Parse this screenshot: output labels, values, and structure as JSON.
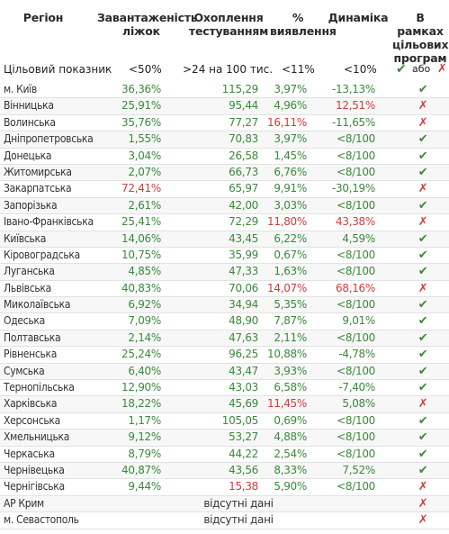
{
  "header": {
    "region": "Регіон",
    "beds": "Завантаженість\nліжок",
    "testing": "Охоплення\nтестуванням",
    "detection": "%\nвиявлення",
    "dynamics": "Динаміка",
    "programs": "В рамках\nцільових\nпрограм"
  },
  "target": {
    "label": "Цільовий показник",
    "beds": "<50%",
    "testing": ">24 на 100 тис.",
    "detection": "<11%",
    "dynamics": "<10%",
    "program_yes": "✔",
    "program_or": "або",
    "program_no": "✗"
  },
  "colors": {
    "ok": "#3a8a3a",
    "bad": "#d33b3b"
  },
  "rows": [
    {
      "name": "м. Київ",
      "beds": "36,36%",
      "beds_s": "ok",
      "testing": "115,29",
      "testing_s": "ok",
      "detection": "3,97%",
      "detection_s": "ok",
      "dynamics": "-13,13%",
      "dynamics_s": "ok",
      "program": "✔",
      "program_s": "ok"
    },
    {
      "name": "Вінницька",
      "beds": "25,91%",
      "beds_s": "ok",
      "testing": "95,44",
      "testing_s": "ok",
      "detection": "4,96%",
      "detection_s": "ok",
      "dynamics": "12,51%",
      "dynamics_s": "bad",
      "program": "✗",
      "program_s": "bad"
    },
    {
      "name": "Волинська",
      "beds": "35,76%",
      "beds_s": "ok",
      "testing": "77,27",
      "testing_s": "ok",
      "detection": "16,11%",
      "detection_s": "bad",
      "dynamics": "-11,65%",
      "dynamics_s": "ok",
      "program": "✗",
      "program_s": "bad"
    },
    {
      "name": "Дніпропетровська",
      "beds": "1,55%",
      "beds_s": "ok",
      "testing": "70,83",
      "testing_s": "ok",
      "detection": "3,97%",
      "detection_s": "ok",
      "dynamics": "<8/100",
      "dynamics_s": "ok",
      "program": "✔",
      "program_s": "ok"
    },
    {
      "name": "Донецька",
      "beds": "3,04%",
      "beds_s": "ok",
      "testing": "26,58",
      "testing_s": "ok",
      "detection": "1,45%",
      "detection_s": "ok",
      "dynamics": "<8/100",
      "dynamics_s": "ok",
      "program": "✔",
      "program_s": "ok"
    },
    {
      "name": "Житомирська",
      "beds": "2,07%",
      "beds_s": "ok",
      "testing": "66,73",
      "testing_s": "ok",
      "detection": "6,76%",
      "detection_s": "ok",
      "dynamics": "<8/100",
      "dynamics_s": "ok",
      "program": "✔",
      "program_s": "ok"
    },
    {
      "name": "Закарпатська",
      "beds": "72,41%",
      "beds_s": "bad",
      "testing": "65,97",
      "testing_s": "ok",
      "detection": "9,91%",
      "detection_s": "ok",
      "dynamics": "-30,19%",
      "dynamics_s": "ok",
      "program": "✗",
      "program_s": "bad"
    },
    {
      "name": "Запорізька",
      "beds": "2,61%",
      "beds_s": "ok",
      "testing": "42,00",
      "testing_s": "ok",
      "detection": "3,03%",
      "detection_s": "ok",
      "dynamics": "<8/100",
      "dynamics_s": "ok",
      "program": "✔",
      "program_s": "ok"
    },
    {
      "name": "Івано-Франківська",
      "beds": "25,41%",
      "beds_s": "ok",
      "testing": "72,29",
      "testing_s": "ok",
      "detection": "11,80%",
      "detection_s": "bad",
      "dynamics": "43,38%",
      "dynamics_s": "bad",
      "program": "✗",
      "program_s": "bad"
    },
    {
      "name": "Київська",
      "beds": "14,06%",
      "beds_s": "ok",
      "testing": "43,45",
      "testing_s": "ok",
      "detection": "6,22%",
      "detection_s": "ok",
      "dynamics": "4,59%",
      "dynamics_s": "ok",
      "program": "✔",
      "program_s": "ok"
    },
    {
      "name": "Кіровоградська",
      "beds": "10,75%",
      "beds_s": "ok",
      "testing": "35,99",
      "testing_s": "ok",
      "detection": "0,67%",
      "detection_s": "ok",
      "dynamics": "<8/100",
      "dynamics_s": "ok",
      "program": "✔",
      "program_s": "ok"
    },
    {
      "name": "Луганська",
      "beds": "4,85%",
      "beds_s": "ok",
      "testing": "47,33",
      "testing_s": "ok",
      "detection": "1,63%",
      "detection_s": "ok",
      "dynamics": "<8/100",
      "dynamics_s": "ok",
      "program": "✔",
      "program_s": "ok"
    },
    {
      "name": "Львівська",
      "beds": "40,83%",
      "beds_s": "ok",
      "testing": "70,06",
      "testing_s": "ok",
      "detection": "14,07%",
      "detection_s": "bad",
      "dynamics": "68,16%",
      "dynamics_s": "bad",
      "program": "✗",
      "program_s": "bad"
    },
    {
      "name": "Миколаївська",
      "beds": "6,92%",
      "beds_s": "ok",
      "testing": "34,94",
      "testing_s": "ok",
      "detection": "5,35%",
      "detection_s": "ok",
      "dynamics": "<8/100",
      "dynamics_s": "ok",
      "program": "✔",
      "program_s": "ok"
    },
    {
      "name": "Одеська",
      "beds": "7,09%",
      "beds_s": "ok",
      "testing": "48,90",
      "testing_s": "ok",
      "detection": "7,87%",
      "detection_s": "ok",
      "dynamics": "9,01%",
      "dynamics_s": "ok",
      "program": "✔",
      "program_s": "ok"
    },
    {
      "name": "Полтавська",
      "beds": "2,14%",
      "beds_s": "ok",
      "testing": "47,63",
      "testing_s": "ok",
      "detection": "2,11%",
      "detection_s": "ok",
      "dynamics": "<8/100",
      "dynamics_s": "ok",
      "program": "✔",
      "program_s": "ok"
    },
    {
      "name": "Рівненська",
      "beds": "25,24%",
      "beds_s": "ok",
      "testing": "96,25",
      "testing_s": "ok",
      "detection": "10,88%",
      "detection_s": "ok",
      "dynamics": "-4,78%",
      "dynamics_s": "ok",
      "program": "✔",
      "program_s": "ok"
    },
    {
      "name": "Сумська",
      "beds": "6,40%",
      "beds_s": "ok",
      "testing": "43,47",
      "testing_s": "ok",
      "detection": "3,93%",
      "detection_s": "ok",
      "dynamics": "<8/100",
      "dynamics_s": "ok",
      "program": "✔",
      "program_s": "ok"
    },
    {
      "name": "Тернопільська",
      "beds": "12,90%",
      "beds_s": "ok",
      "testing": "43,03",
      "testing_s": "ok",
      "detection": "6,58%",
      "detection_s": "ok",
      "dynamics": "-7,40%",
      "dynamics_s": "ok",
      "program": "✔",
      "program_s": "ok"
    },
    {
      "name": "Харківська",
      "beds": "18,22%",
      "beds_s": "ok",
      "testing": "45,69",
      "testing_s": "ok",
      "detection": "11,45%",
      "detection_s": "bad",
      "dynamics": "5,08%",
      "dynamics_s": "ok",
      "program": "✗",
      "program_s": "bad"
    },
    {
      "name": "Херсонська",
      "beds": "1,17%",
      "beds_s": "ok",
      "testing": "105,05",
      "testing_s": "ok",
      "detection": "0,69%",
      "detection_s": "ok",
      "dynamics": "<8/100",
      "dynamics_s": "ok",
      "program": "✔",
      "program_s": "ok"
    },
    {
      "name": "Хмельницька",
      "beds": "9,12%",
      "beds_s": "ok",
      "testing": "53,27",
      "testing_s": "ok",
      "detection": "4,88%",
      "detection_s": "ok",
      "dynamics": "<8/100",
      "dynamics_s": "ok",
      "program": "✔",
      "program_s": "ok"
    },
    {
      "name": "Черкаська",
      "beds": "8,79%",
      "beds_s": "ok",
      "testing": "44,22",
      "testing_s": "ok",
      "detection": "2,54%",
      "detection_s": "ok",
      "dynamics": "<8/100",
      "dynamics_s": "ok",
      "program": "✔",
      "program_s": "ok"
    },
    {
      "name": "Чернівецька",
      "beds": "40,87%",
      "beds_s": "ok",
      "testing": "43,56",
      "testing_s": "ok",
      "detection": "8,33%",
      "detection_s": "ok",
      "dynamics": "7,52%",
      "dynamics_s": "ok",
      "program": "✔",
      "program_s": "ok"
    },
    {
      "name": "Чернігівська",
      "beds": "9,44%",
      "beds_s": "ok",
      "testing": "15,38",
      "testing_s": "bad",
      "detection": "5,90%",
      "detection_s": "ok",
      "dynamics": "<8/100",
      "dynamics_s": "ok",
      "program": "✗",
      "program_s": "bad"
    },
    {
      "name": "АР Крим",
      "merged": "відсутні дані",
      "program": "✗",
      "program_s": "bad"
    },
    {
      "name": "м. Севастополь",
      "merged": "відсутні дані",
      "program": "✗",
      "program_s": "bad"
    }
  ]
}
